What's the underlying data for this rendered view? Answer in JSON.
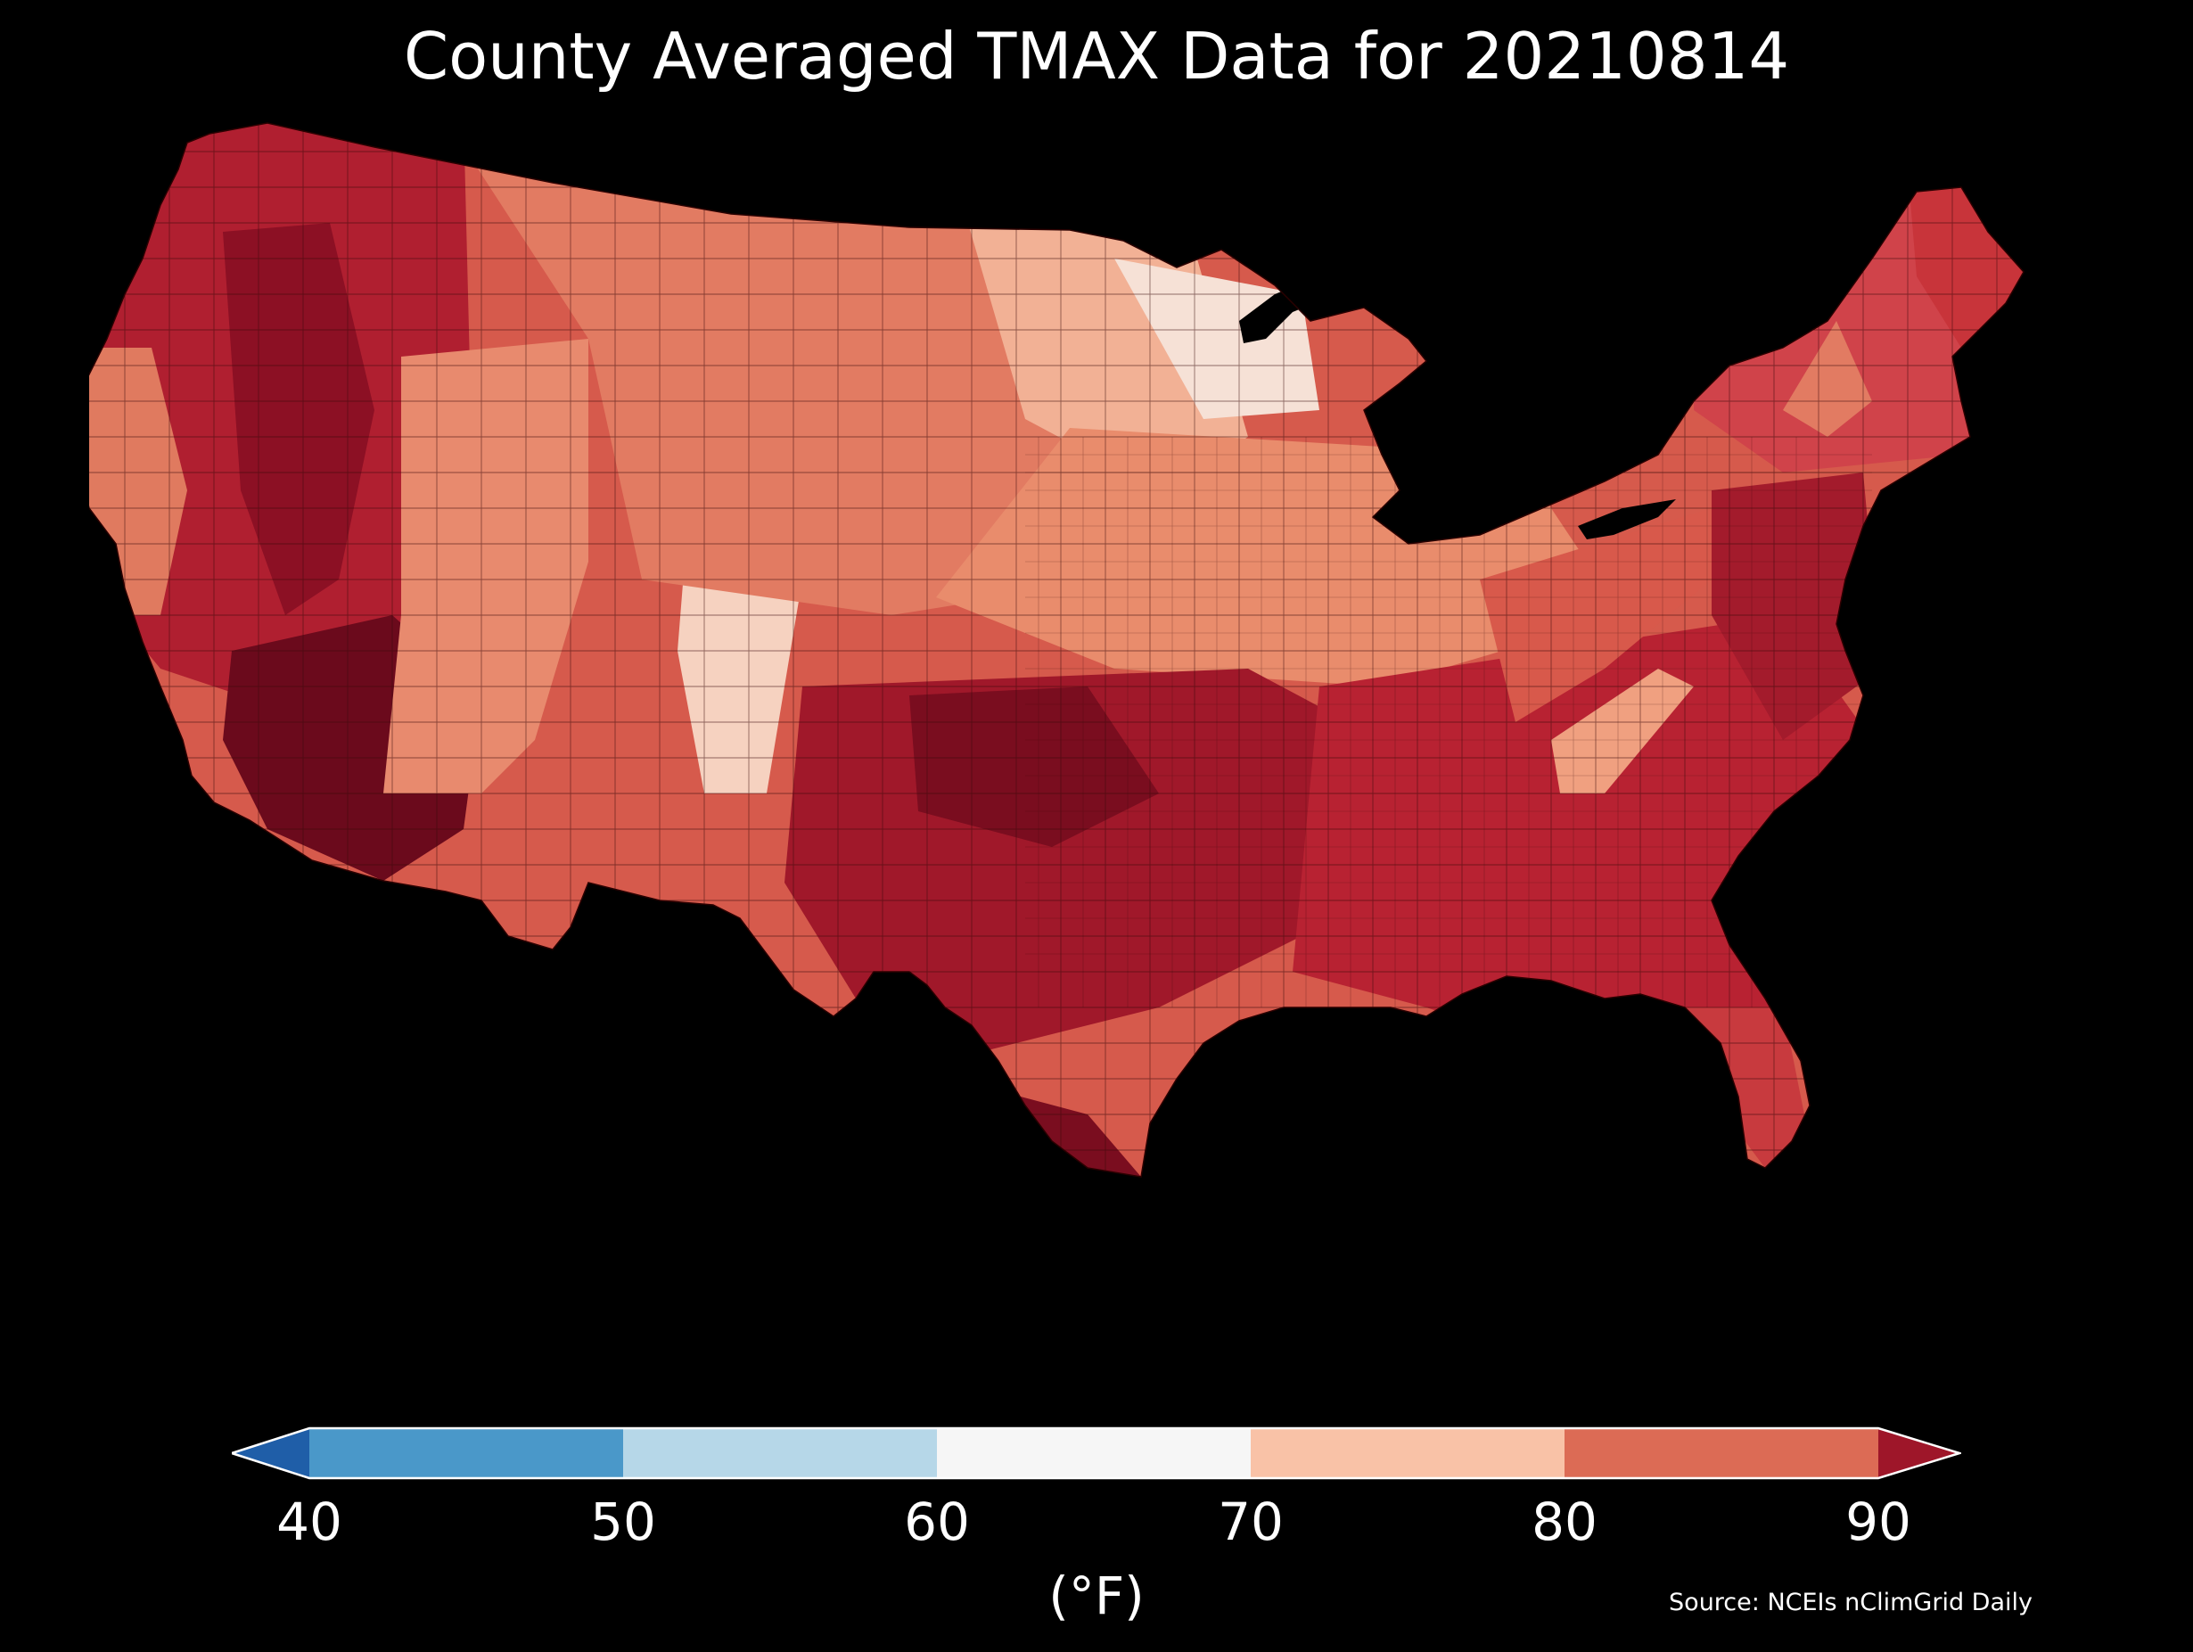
{
  "title": "County Averaged TMAX Data for 20210814",
  "colorbar": {
    "ticks": [
      "40",
      "50",
      "60",
      "70",
      "80",
      "90"
    ],
    "tick_values": [
      40,
      50,
      60,
      70,
      80,
      90
    ],
    "extend": "both",
    "bins": [
      {
        "from": null,
        "to": 40,
        "color": "#1f5ea8"
      },
      {
        "from": 40,
        "to": 50,
        "color": "#4a98c9"
      },
      {
        "from": 50,
        "to": 60,
        "color": "#b6d7e8"
      },
      {
        "from": 60,
        "to": 70,
        "color": "#f6f6f6"
      },
      {
        "from": 70,
        "to": 80,
        "color": "#f9c2a7"
      },
      {
        "from": 80,
        "to": 90,
        "color": "#dc6b55"
      },
      {
        "from": 90,
        "to": null,
        "color": "#9e1629"
      }
    ],
    "unit": "(°F)"
  },
  "source": "Source: NCEIs nClimGrid Daily",
  "map": {
    "region": "contiguous-united-states",
    "background": "#000000",
    "county_edge_color": "#3a0a0a",
    "regional_fill_colors": {
      "pacific_northwest": "#c8343a",
      "california_coast": "#e07a5f",
      "desert_southwest": "#6e0a1e",
      "great_basin": "#a0182a",
      "rockies": "#f2b195",
      "northern_plains": "#e07a5f",
      "upper_midwest": "#f6d8c7",
      "central_plains": "#e88a6e",
      "texas_oklahoma": "#a0182a",
      "southeast": "#b82232",
      "appalachia": "#e98c6c",
      "mid_atlantic": "#a31b2c",
      "northeast": "#d0434a",
      "maine": "#c8343a"
    }
  }
}
